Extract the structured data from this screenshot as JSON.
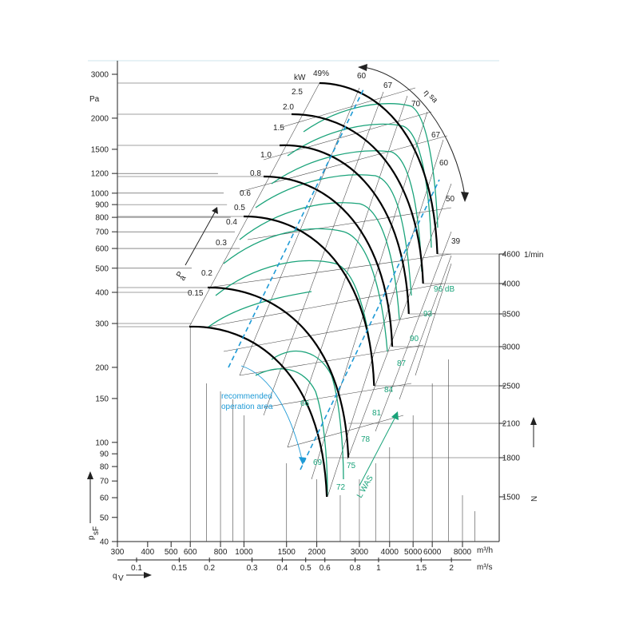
{
  "chart_data": {
    "type": "line",
    "title": "",
    "y_scale": "log",
    "x_scale": "log",
    "pressure_axis": {
      "unit_label": "Pa",
      "axis_symbol": "p",
      "axis_symbol_sub": "sF",
      "range": [
        40,
        3000
      ],
      "ticks": [
        40,
        50,
        60,
        70,
        80,
        90,
        100,
        150,
        200,
        300,
        400,
        500,
        600,
        700,
        800,
        900,
        1000,
        1200,
        1500,
        2000,
        3000
      ]
    },
    "flow_axis_m3h": {
      "unit_label": "m³/h",
      "range": [
        300,
        10000
      ],
      "ticks": [
        300,
        400,
        500,
        600,
        800,
        1000,
        1500,
        2000,
        3000,
        4000,
        5000,
        6000,
        8000
      ]
    },
    "flow_axis_m3s": {
      "unit_label": "m³/s",
      "axis_symbol": "q",
      "axis_symbol_sub": "V",
      "ticks": [
        0.1,
        0.15,
        0.2,
        0.3,
        0.4,
        0.5,
        0.6,
        0.8,
        1,
        1.5,
        2.0
      ]
    },
    "speed_axis": {
      "unit_label": "1/min",
      "axis_symbol": "N",
      "ticks": [
        1500,
        1800,
        2100,
        2500,
        3000,
        3500,
        4000,
        4600
      ]
    },
    "speed_curves": [
      {
        "rpm": 4600,
        "peak_pressure_pa": 2700,
        "free_flow_m3h": 6300
      },
      {
        "rpm": 4000,
        "peak_pressure_pa": 2050,
        "free_flow_m3h": 5500
      },
      {
        "rpm": 3500,
        "peak_pressure_pa": 1570,
        "free_flow_m3h": 4800
      },
      {
        "rpm": 3000,
        "peak_pressure_pa": 1150,
        "free_flow_m3h": 4100
      },
      {
        "rpm": 2500,
        "peak_pressure_pa": 800,
        "free_flow_m3h": 3450
      },
      {
        "rpm": 2100,
        "peak_pressure_pa": 415,
        "free_flow_m3h": 2700
      },
      {
        "rpm": 1800,
        "peak_pressure_pa": 292,
        "free_flow_m3h": 2200
      }
    ],
    "power_lines_kw": {
      "label": "kW",
      "axis_symbol": "P",
      "axis_symbol_sub": "a",
      "values": [
        "2.5",
        "2.0",
        "1.5",
        "1.0",
        "0.8",
        "0.6",
        "0.5",
        "0.4",
        "0.3",
        "0.2",
        "0.15"
      ]
    },
    "efficiency": {
      "axis_symbol": "η",
      "axis_symbol_sub": "sa",
      "peak_label": "49%",
      "values": [
        "60",
        "67",
        "70",
        "67",
        "60",
        "50",
        "39"
      ]
    },
    "sound_power": {
      "axis_symbol": "L",
      "axis_symbol_sub": "WAS",
      "unit_label": "dB",
      "values": [
        "96",
        "93",
        "90",
        "87",
        "84",
        "81",
        "78",
        "75",
        "72",
        "69",
        "66"
      ]
    },
    "recommended_area": {
      "label_line1": "recommended",
      "label_line2": "operation area"
    },
    "colors": {
      "fan_curve": "#000000",
      "sound_lines": "#1aa37a",
      "recommended": "#1e9ad6",
      "grid": "#444444"
    }
  }
}
